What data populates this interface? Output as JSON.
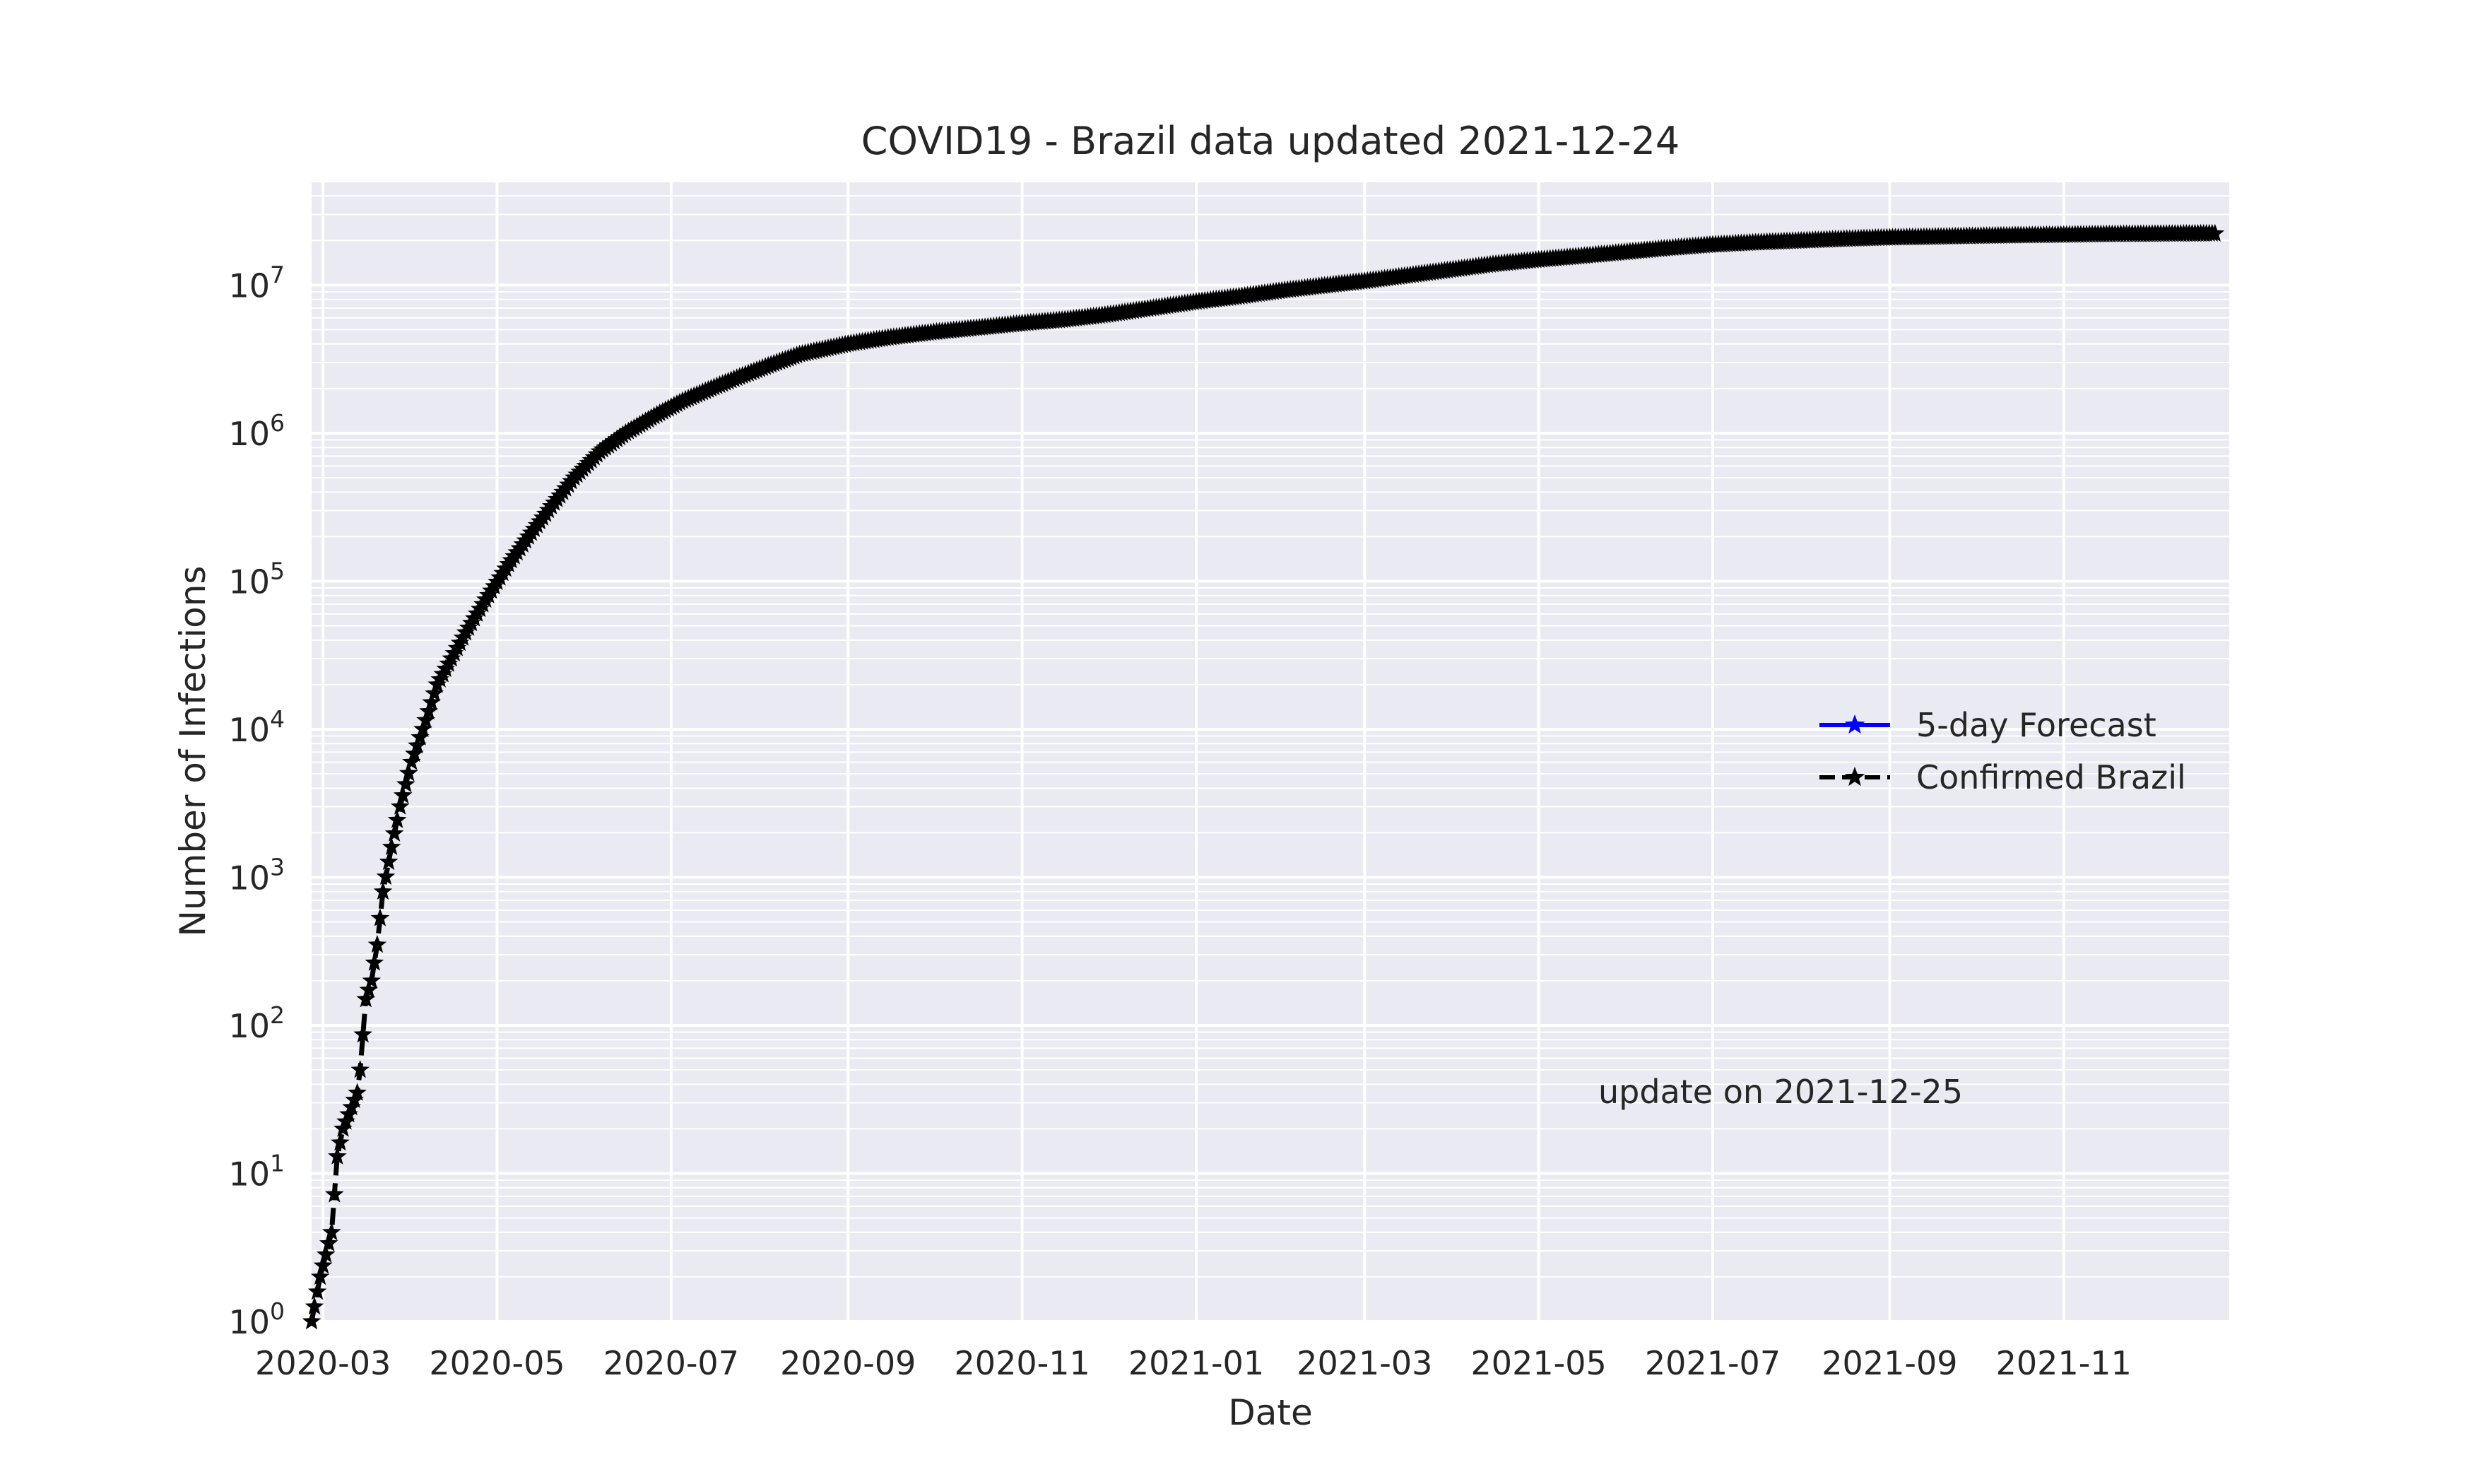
{
  "chart_data": {
    "type": "line",
    "title": "COVID19 - Brazil data updated 2021-12-24",
    "xlabel": "Date",
    "ylabel": "Number of Infections",
    "yscale": "log",
    "ylim": [
      1,
      50000000
    ],
    "xlim": [
      "2020-02-26",
      "2021-12-29"
    ],
    "x_ticks": [
      "2020-03",
      "2020-05",
      "2020-07",
      "2020-09",
      "2020-11",
      "2021-01",
      "2021-03",
      "2021-05",
      "2021-07",
      "2021-09",
      "2021-11"
    ],
    "y_ticks": [
      {
        "base": "10",
        "exp": "0"
      },
      {
        "base": "10",
        "exp": "1"
      },
      {
        "base": "10",
        "exp": "2"
      },
      {
        "base": "10",
        "exp": "3"
      },
      {
        "base": "10",
        "exp": "4"
      },
      {
        "base": "10",
        "exp": "5"
      },
      {
        "base": "10",
        "exp": "6"
      },
      {
        "base": "10",
        "exp": "7"
      }
    ],
    "grid": true,
    "legend_position": "center-right",
    "annotation": "update on 2021-12-25",
    "series": [
      {
        "name": "5-day Forecast",
        "color": "#0000ff",
        "line_style": "solid",
        "marker": "star",
        "x": [],
        "y": []
      },
      {
        "name": "Confirmed Brazil",
        "color": "#000000",
        "line_style": "dashed",
        "marker": "star",
        "x": [
          "2020-02-26",
          "2020-02-29",
          "2020-03-04",
          "2020-03-06",
          "2020-03-08",
          "2020-03-10",
          "2020-03-13",
          "2020-03-14",
          "2020-03-16",
          "2020-03-18",
          "2020-03-20",
          "2020-03-22",
          "2020-03-25",
          "2020-03-28",
          "2020-04-01",
          "2020-04-05",
          "2020-04-10",
          "2020-04-15",
          "2020-04-20",
          "2020-04-27",
          "2020-05-05",
          "2020-05-12",
          "2020-05-20",
          "2020-05-28",
          "2020-06-06",
          "2020-06-15",
          "2020-06-25",
          "2020-07-05",
          "2020-07-15",
          "2020-07-25",
          "2020-08-05",
          "2020-08-15",
          "2020-09-01",
          "2020-09-15",
          "2020-10-01",
          "2020-10-15",
          "2020-11-01",
          "2020-11-15",
          "2020-12-01",
          "2020-12-15",
          "2021-01-01",
          "2021-01-15",
          "2021-02-01",
          "2021-02-15",
          "2021-03-01",
          "2021-03-15",
          "2021-04-01",
          "2021-04-15",
          "2021-05-01",
          "2021-05-15",
          "2021-06-01",
          "2021-06-15",
          "2021-07-01",
          "2021-07-15",
          "2021-08-01",
          "2021-08-15",
          "2021-09-01",
          "2021-09-15",
          "2021-10-01",
          "2021-10-15",
          "2021-11-01",
          "2021-11-15",
          "2021-12-01",
          "2021-12-15",
          "2021-12-24"
        ],
        "y": [
          1,
          2,
          4,
          13,
          20,
          25,
          35,
          50,
          150,
          200,
          350,
          800,
          1600,
          3000,
          6000,
          10000,
          20000,
          30000,
          45000,
          75000,
          130000,
          200000,
          320000,
          500000,
          750000,
          1000000,
          1300000,
          1650000,
          2000000,
          2400000,
          2900000,
          3400000,
          4000000,
          4400000,
          4800000,
          5100000,
          5500000,
          5800000,
          6300000,
          6900000,
          7700000,
          8300000,
          9200000,
          9900000,
          10600000,
          11500000,
          12700000,
          13800000,
          14800000,
          15600000,
          16700000,
          17700000,
          18700000,
          19300000,
          19900000,
          20400000,
          20900000,
          21100000,
          21400000,
          21600000,
          21800000,
          22000000,
          22100000,
          22200000,
          22250000
        ]
      }
    ]
  }
}
